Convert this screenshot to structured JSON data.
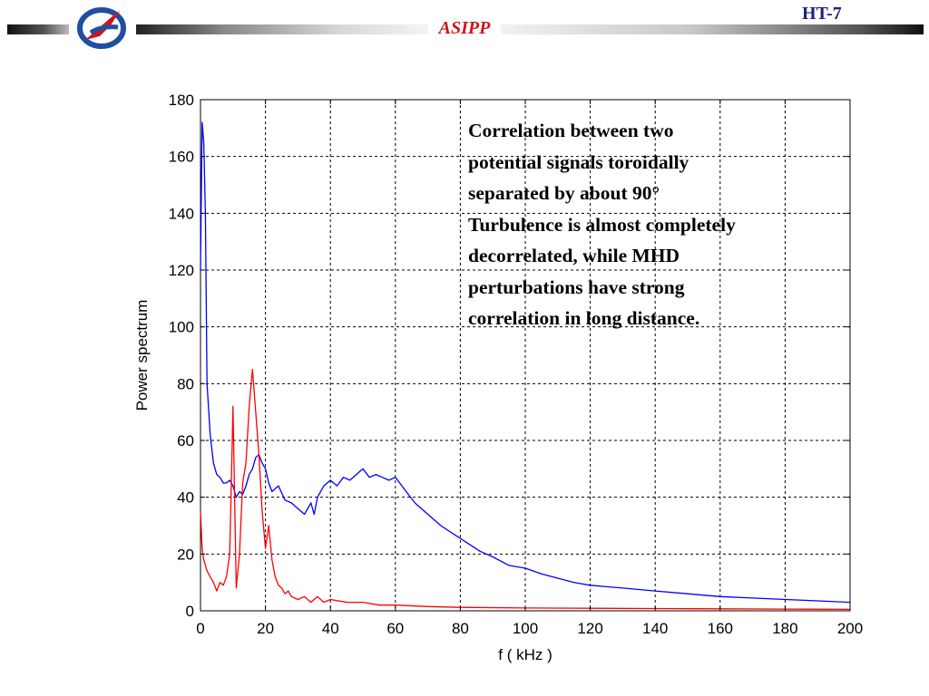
{
  "header": {
    "brand": "ASIPP",
    "tag": "HT-7",
    "logo_icon": "asipp-logo-icon"
  },
  "annotation": {
    "lines": [
      "Correlation between two",
      "potential signals toroidally",
      "separated by about 90°",
      "Turbulence is almost completely",
      "decorrelated, while MHD",
      "perturbations have strong",
      "correlation in long distance."
    ]
  },
  "colors": {
    "blue_series": "#0000ff",
    "red_series": "#ff0000",
    "brand_red": "#d0141c",
    "tag_navy": "#1a237e"
  },
  "chart_data": {
    "type": "line",
    "title": "",
    "xlabel": "f  ( kHz )",
    "ylabel": "Power spectrum",
    "xlim": [
      0,
      200
    ],
    "ylim": [
      0,
      180
    ],
    "xticks": [
      0,
      20,
      40,
      60,
      80,
      100,
      120,
      140,
      160,
      180,
      200
    ],
    "yticks": [
      0,
      20,
      40,
      60,
      80,
      100,
      120,
      140,
      160,
      180
    ],
    "grid": true,
    "grid_style": "dotted",
    "legend": "none",
    "series": [
      {
        "color": "#0000ff",
        "x": [
          0,
          0.5,
          1,
          1.5,
          2,
          3,
          4,
          5,
          6,
          7,
          8,
          9,
          10,
          11,
          12,
          13,
          14,
          15,
          16,
          17,
          18,
          19,
          20,
          21,
          22,
          24,
          26,
          28,
          30,
          32,
          34,
          35,
          36,
          38,
          40,
          42,
          44,
          46,
          48,
          50,
          52,
          54,
          56,
          58,
          60,
          62,
          64,
          66,
          70,
          74,
          78,
          82,
          86,
          90,
          95,
          100,
          105,
          110,
          115,
          120,
          125,
          130,
          140,
          150,
          160,
          170,
          180,
          190,
          200
        ],
        "y": [
          120,
          172,
          165,
          140,
          80,
          62,
          52,
          48,
          47,
          45,
          45,
          46,
          44,
          40,
          42,
          41,
          44,
          48,
          50,
          54,
          55,
          52,
          50,
          45,
          42,
          44,
          39,
          38,
          36,
          34,
          38,
          34,
          40,
          44,
          46,
          44,
          47,
          46,
          48,
          50,
          47,
          48,
          47,
          46,
          47,
          44,
          41,
          38,
          34,
          30,
          27,
          24,
          21,
          19,
          16,
          15,
          13,
          11.5,
          10,
          9,
          8.5,
          8,
          7,
          6,
          5,
          4.5,
          4,
          3.5,
          3
        ]
      },
      {
        "color": "#ff0000",
        "x": [
          0,
          0.5,
          1,
          2,
          3,
          4,
          5,
          6,
          7,
          8,
          9,
          9.5,
          10,
          10.5,
          11,
          12,
          13,
          14,
          15,
          16,
          17,
          18,
          19,
          20,
          21,
          22,
          23,
          24,
          25,
          26,
          27,
          28,
          30,
          32,
          34,
          36,
          38,
          40,
          45,
          50,
          55,
          60,
          70,
          80,
          100,
          120,
          140,
          160,
          180,
          200
        ],
        "y": [
          35,
          22,
          18,
          14,
          12,
          10,
          7,
          10,
          9,
          12,
          20,
          45,
          72,
          40,
          8,
          20,
          45,
          52,
          72,
          85,
          70,
          55,
          35,
          22,
          30,
          18,
          12,
          9,
          8,
          6,
          7,
          5,
          4,
          5,
          3,
          5,
          3,
          4,
          3,
          3,
          2,
          2,
          1.5,
          1.2,
          1,
          0.9,
          0.8,
          0.7,
          0.6,
          0.5
        ]
      }
    ]
  }
}
